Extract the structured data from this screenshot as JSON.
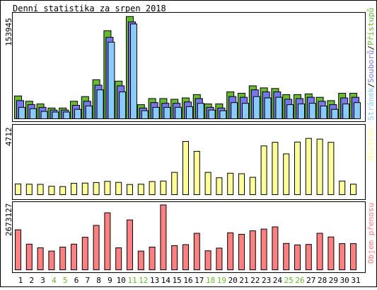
{
  "title": "Denní statistika za srpen 2018",
  "colors": {
    "access": "#66bb33",
    "files": "#7777ee",
    "pages": "#88ccff",
    "visits": "#ffff99",
    "traffic": "#ff8080",
    "weekend_day": "#66bb33",
    "weekday_day": "#000000",
    "panel_border": "#000000"
  },
  "legend": {
    "panel1": {
      "pages": "Stránek",
      "sep1": "/",
      "files": "Souborů",
      "sep2": "/",
      "access": "Přístupů"
    },
    "panel2": "Návštěv",
    "panel3": "Objem přenosu"
  },
  "chart_data": [
    {
      "type": "bar",
      "title": "Denní statistika za srpen 2018",
      "categories": [
        "1",
        "2",
        "3",
        "4",
        "5",
        "6",
        "7",
        "8",
        "9",
        "10",
        "11",
        "12",
        "13",
        "14",
        "15",
        "16",
        "17",
        "18",
        "19",
        "20",
        "21",
        "22",
        "23",
        "24",
        "25",
        "26",
        "27",
        "28",
        "29",
        "30",
        "31"
      ],
      "weekend_days": [
        "4",
        "5",
        "11",
        "12",
        "18",
        "19",
        "25",
        "26"
      ],
      "ymax_label": "153945",
      "ylim": [
        0,
        153945
      ],
      "series": [
        {
          "name": "Přístupů",
          "key": "access",
          "values": [
            34000,
            26000,
            22000,
            16000,
            16000,
            26000,
            33000,
            58000,
            131000,
            56000,
            152000,
            21000,
            30000,
            30000,
            29000,
            31000,
            36000,
            22000,
            22000,
            40000,
            38000,
            49000,
            46000,
            45000,
            36000,
            36000,
            37000,
            32000,
            27000,
            38000,
            38000
          ]
        },
        {
          "name": "Souborů",
          "key": "files",
          "values": [
            27000,
            21000,
            17000,
            13000,
            13000,
            20000,
            26000,
            50000,
            121000,
            49000,
            144000,
            16000,
            24000,
            23000,
            23000,
            25000,
            30000,
            17000,
            16000,
            33000,
            32000,
            43000,
            40000,
            40000,
            29000,
            30000,
            32000,
            26000,
            21000,
            31000,
            32000
          ]
        },
        {
          "name": "Stránek",
          "key": "pages",
          "values": [
            17000,
            15000,
            11000,
            10000,
            10000,
            14000,
            19000,
            43000,
            114000,
            40000,
            141000,
            12000,
            17000,
            17000,
            17000,
            18000,
            23000,
            13000,
            12000,
            24000,
            23000,
            33000,
            31000,
            32000,
            21000,
            22000,
            23000,
            19000,
            14000,
            22000,
            24000
          ]
        }
      ]
    },
    {
      "type": "bar",
      "categories": [
        "1",
        "2",
        "3",
        "4",
        "5",
        "6",
        "7",
        "8",
        "9",
        "10",
        "11",
        "12",
        "13",
        "14",
        "15",
        "16",
        "17",
        "18",
        "19",
        "20",
        "21",
        "22",
        "23",
        "24",
        "25",
        "26",
        "27",
        "28",
        "29",
        "30",
        "31"
      ],
      "ymax_label": "4712",
      "ylim": [
        0,
        4712
      ],
      "series": [
        {
          "name": "Návštěv",
          "key": "visits",
          "values": [
            740,
            720,
            710,
            580,
            560,
            780,
            800,
            840,
            920,
            850,
            700,
            720,
            910,
            940,
            1540,
            3680,
            3000,
            1540,
            1170,
            1480,
            1450,
            1200,
            3370,
            3620,
            2820,
            3640,
            3890,
            3850,
            3620,
            940,
            720
          ]
        }
      ]
    },
    {
      "type": "bar",
      "categories": [
        "1",
        "2",
        "3",
        "4",
        "5",
        "6",
        "7",
        "8",
        "9",
        "10",
        "11",
        "12",
        "13",
        "14",
        "15",
        "16",
        "17",
        "18",
        "19",
        "20",
        "21",
        "22",
        "23",
        "24",
        "25",
        "26",
        "27",
        "28",
        "29",
        "30",
        "31"
      ],
      "ymax_label": "2673127",
      "ylim": [
        0,
        2673127
      ],
      "series": [
        {
          "name": "Objem přenosu",
          "key": "traffic",
          "values": [
            1620000,
            1040000,
            890000,
            760000,
            920000,
            1040000,
            1320000,
            1800000,
            2310000,
            890000,
            2020000,
            760000,
            920000,
            2630000,
            980000,
            1020000,
            1480000,
            770000,
            880000,
            1500000,
            1440000,
            1580000,
            1650000,
            1740000,
            1070000,
            1010000,
            1030000,
            1480000,
            1330000,
            1060000,
            1060000
          ]
        }
      ]
    }
  ]
}
